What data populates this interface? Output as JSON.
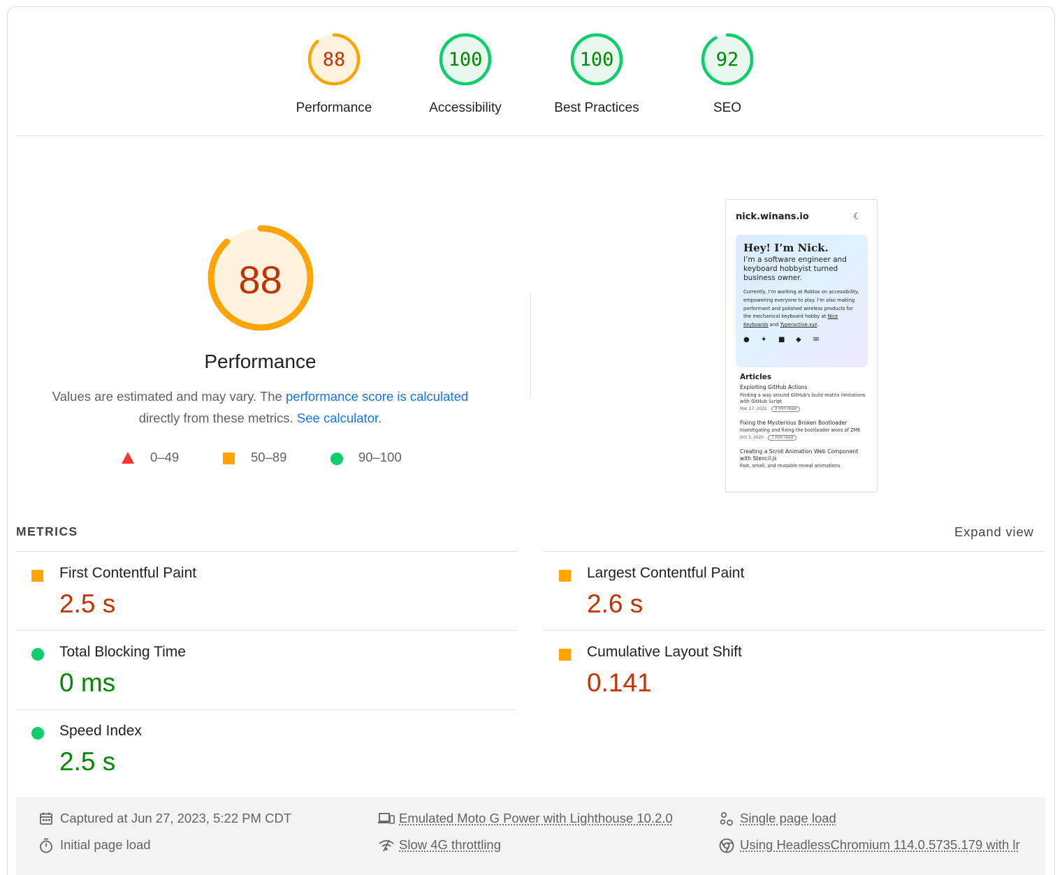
{
  "categories": [
    {
      "score": "88",
      "label": "Performance",
      "color": "#ffa400",
      "text_color": "#c33300",
      "fill": "#fff3e0",
      "fraction": 0.88
    },
    {
      "score": "100",
      "label": "Accessibility",
      "color": "#0cce6b",
      "text_color": "#008800",
      "fill": "#e8f8ee",
      "fraction": 1.0
    },
    {
      "score": "100",
      "label": "Best Practices",
      "color": "#0cce6b",
      "text_color": "#008800",
      "fill": "#e8f8ee",
      "fraction": 1.0
    },
    {
      "score": "92",
      "label": "SEO",
      "color": "#0cce6b",
      "text_color": "#008800",
      "fill": "#e8f8ee",
      "fraction": 0.92
    }
  ],
  "performance": {
    "score": "88",
    "fraction": 0.88,
    "title": "Performance",
    "desc_prefix": "Values are estimated and may vary. The ",
    "desc_link1": "performance score is calculated",
    "desc_middle": " directly from these metrics. ",
    "desc_link2": "See calculator.",
    "legend": {
      "red": "0–49",
      "orange": "50–89",
      "green": "90–100"
    }
  },
  "thumbnail": {
    "site": "nick.winans.io",
    "hero_heading": "Hey! I’m Nick.",
    "hero_sub": "I’m a software engineer and keyboard hobbyist turned business owner.",
    "hero_p1": "Currently, I’m working at Roblox on accessibility, empowering everyone to play. I’m also making performant and polished wireless products for the mechanical keyboard hobby at ",
    "hero_link1": "Nice Keyboards",
    "hero_and": " and ",
    "hero_link2": "Typeractive.xyz",
    "hero_end": ".",
    "articles_heading": "Articles",
    "articles": [
      {
        "title": "Exploiting GitHub Actions",
        "desc": "Finding a way around GitHub's build matrix limitations with GitHub Script",
        "date": "Mar 17, 2022",
        "read": "3 min read"
      },
      {
        "title": "Fixing the Mysterious Broken Bootloader",
        "desc": "Investigating and fixing the bootloader woes of ZMK",
        "date": "Oct 3, 2020",
        "read": "7 min read"
      },
      {
        "title": "Creating a Scroll Animation Web Component with Stencil.js",
        "desc": "Fast, small, and reusable reveal animations",
        "date": "",
        "read": ""
      }
    ]
  },
  "metrics": {
    "heading": "METRICS",
    "expand": "Expand view",
    "items": [
      {
        "label": "First Contentful Paint",
        "value": "2.5 s",
        "rating": "orange"
      },
      {
        "label": "Largest Contentful Paint",
        "value": "2.6 s",
        "rating": "orange"
      },
      {
        "label": "Total Blocking Time",
        "value": "0 ms",
        "rating": "green"
      },
      {
        "label": "Cumulative Layout Shift",
        "value": "0.141",
        "rating": "orange"
      },
      {
        "label": "Speed Index",
        "value": "2.5 s",
        "rating": "green"
      }
    ]
  },
  "footer": {
    "captured": "Captured at Jun 27, 2023, 5:22 PM CDT",
    "initial": "Initial page load",
    "device": "Emulated Moto G Power with Lighthouse 10.2.0",
    "throttling": "Slow 4G throttling",
    "single": "Single page load",
    "browser": "Using HeadlessChromium 114.0.5735.179 with lr"
  }
}
